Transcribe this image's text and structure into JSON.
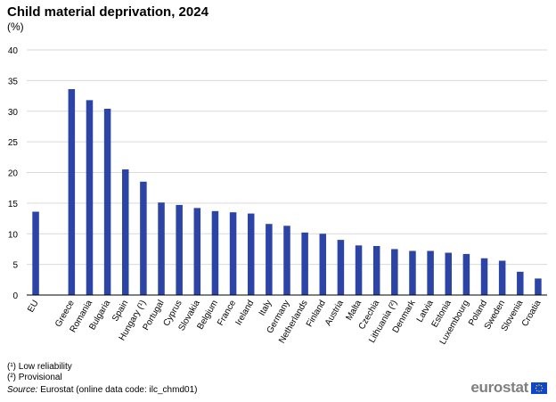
{
  "header": {
    "title": "Child material deprivation, 2024",
    "subtitle": "(%)"
  },
  "footnotes": {
    "note1": "(¹) Low reliability",
    "note2": "(²) Provisional",
    "source_label": "Source:",
    "source_text": "Eurostat (online data code: ilc_chmd01)"
  },
  "logo": {
    "text": "eurostat",
    "flag_icon": "eu-flag-icon"
  },
  "colors": {
    "bar": "#2b44a6",
    "grid": "#d9d9d9",
    "axis": "#000000"
  },
  "chart_data": {
    "type": "bar",
    "title": "Child material deprivation, 2024",
    "ylabel": "(%)",
    "ylim": [
      0,
      40
    ],
    "yticks": [
      0,
      5,
      10,
      15,
      20,
      25,
      30,
      35,
      40
    ],
    "grid": true,
    "legend": "none",
    "categories": [
      "EU",
      "",
      "Greece",
      "Romania",
      "Bulgaria",
      "Spain",
      "Hungary (¹)",
      "Portugal",
      "Cyprus",
      "Slovakia",
      "Belgium",
      "France",
      "Ireland",
      "Italy",
      "Germany",
      "Netherlands",
      "Finland",
      "Austria",
      "Malta",
      "Czechia",
      "Lithuania (²)",
      "Denmark",
      "Latvia",
      "Estonia",
      "Luxembourg",
      "Poland",
      "Sweden",
      "Slovenia",
      "Croatia"
    ],
    "values": [
      13.6,
      null,
      33.6,
      31.8,
      30.4,
      20.5,
      18.5,
      15.1,
      14.7,
      14.2,
      13.7,
      13.5,
      13.3,
      11.6,
      11.3,
      10.2,
      10.0,
      9.0,
      8.1,
      8.0,
      7.5,
      7.2,
      7.2,
      6.9,
      6.7,
      6.0,
      5.6,
      3.8,
      2.7
    ]
  }
}
